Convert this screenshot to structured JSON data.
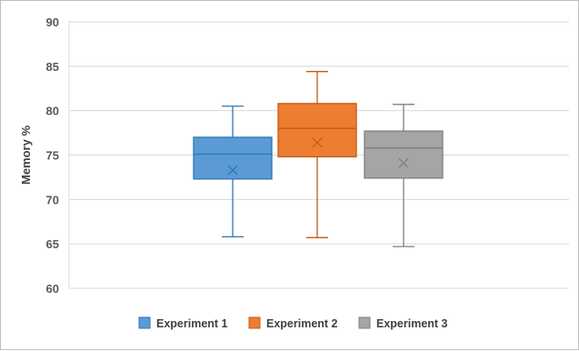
{
  "chart_data": {
    "type": "box",
    "title": "",
    "xlabel": "",
    "ylabel": "Memory %",
    "ylim": [
      60,
      90
    ],
    "yticks": [
      60,
      65,
      70,
      75,
      80,
      85,
      90
    ],
    "grid": true,
    "legend_position": "bottom",
    "series": [
      {
        "name": "Experiment 1",
        "color": "#5b9bd5",
        "stroke": "#2e75b6",
        "min": 65.8,
        "q1": 72.3,
        "median": 75.1,
        "q3": 77.0,
        "max": 80.5,
        "mean": 73.3
      },
      {
        "name": "Experiment 2",
        "color": "#ed7d31",
        "stroke": "#c55a11",
        "min": 65.7,
        "q1": 74.8,
        "median": 78.0,
        "q3": 80.8,
        "max": 84.4,
        "mean": 76.4
      },
      {
        "name": "Experiment 3",
        "color": "#a5a5a5",
        "stroke": "#7f7f7f",
        "min": 64.7,
        "q1": 72.4,
        "median": 75.8,
        "q3": 77.7,
        "max": 80.7,
        "mean": 74.1
      }
    ]
  }
}
